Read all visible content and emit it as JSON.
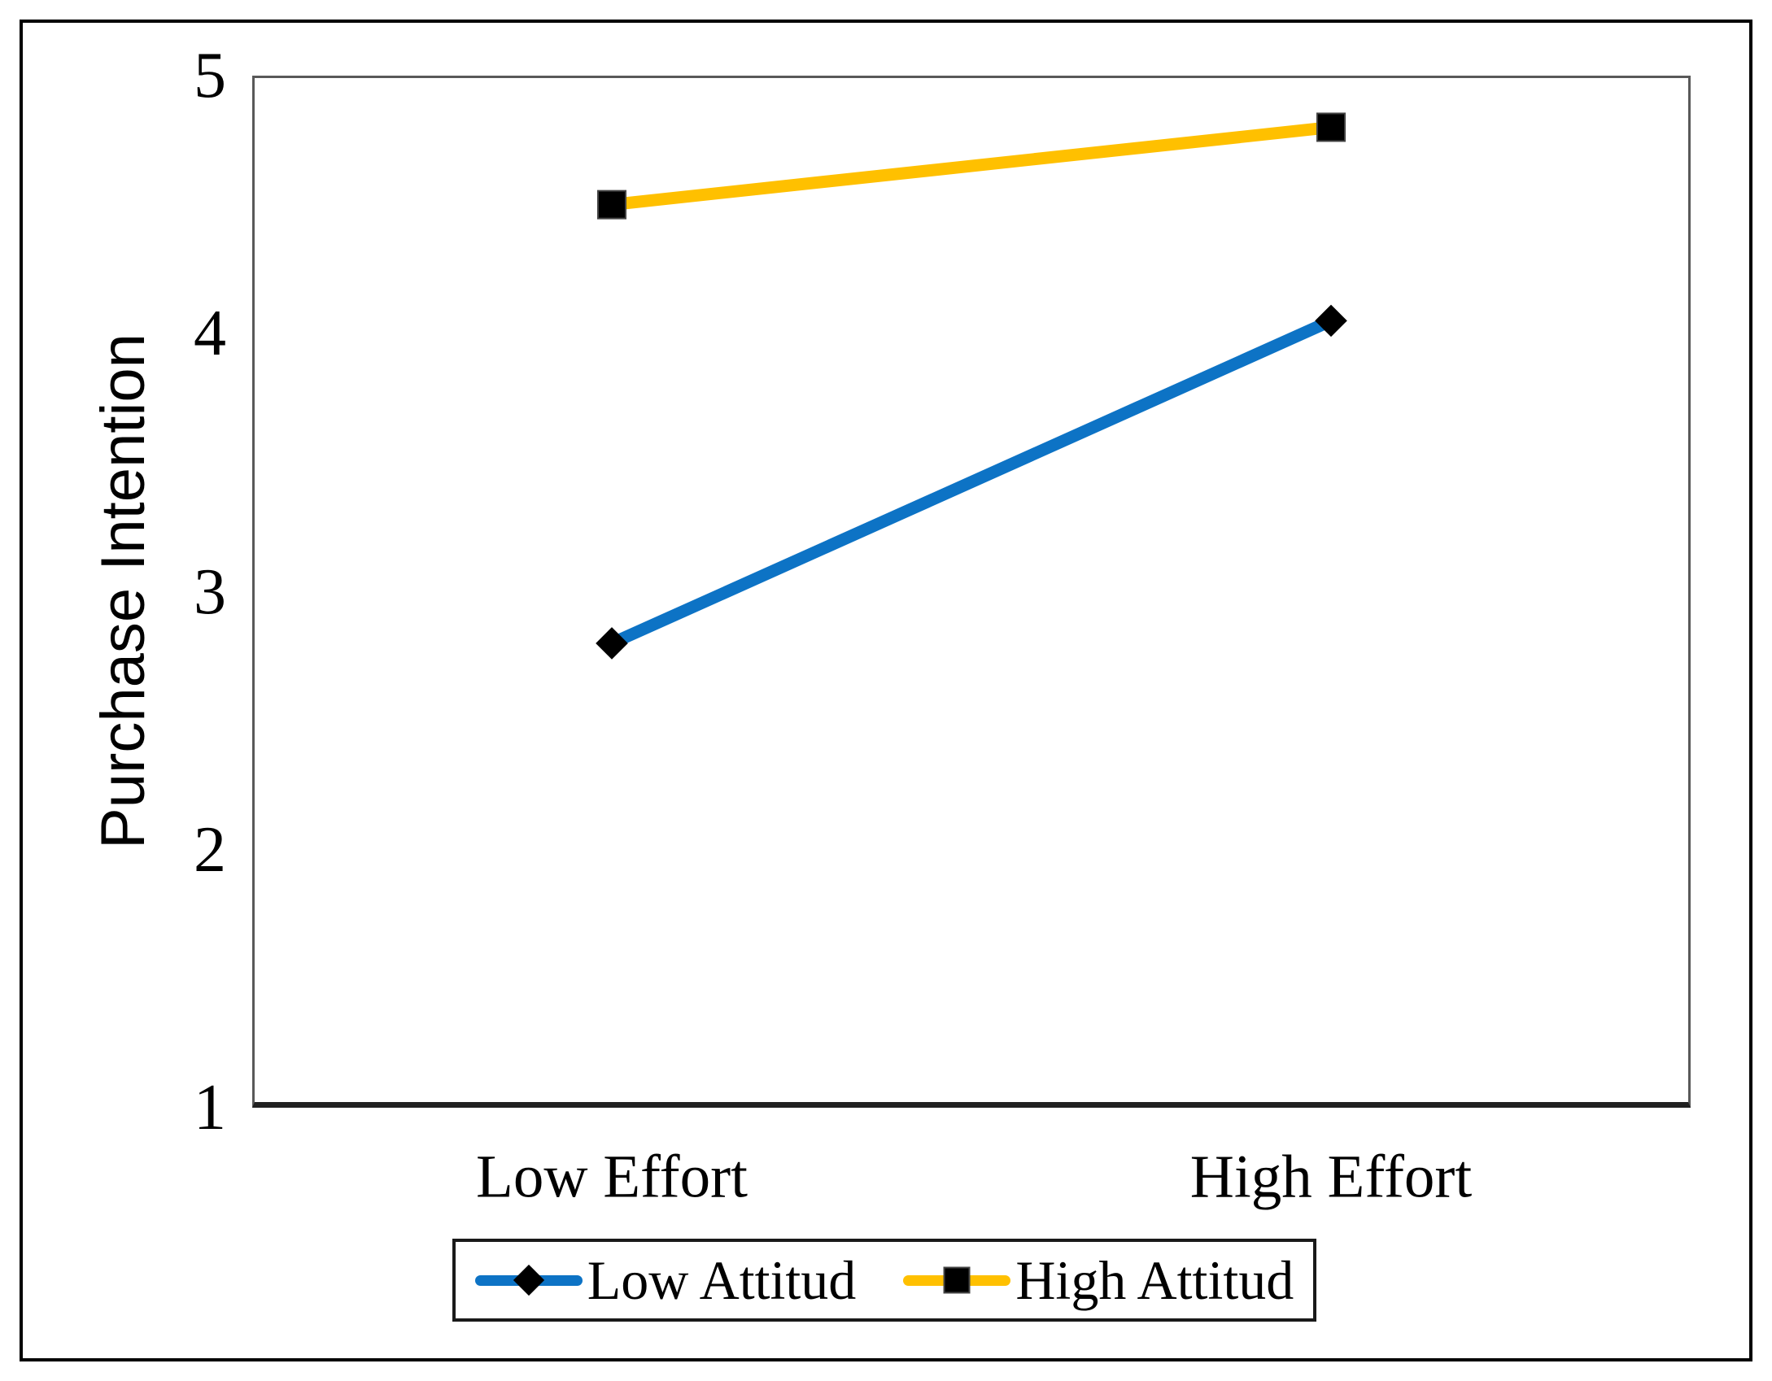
{
  "figure": {
    "background_color": "#ffffff",
    "frame_color": "#000000",
    "plot_border_color": "#595959",
    "axis_line_color": "#212121"
  },
  "chart_data": {
    "type": "line",
    "title": "",
    "xlabel": "",
    "ylabel": "Purchase Intention",
    "categories": [
      "Low Effort",
      "High Effort"
    ],
    "ylim": [
      1,
      5
    ],
    "yticks": [
      1,
      2,
      3,
      4,
      5
    ],
    "ytick_labels": [
      "1",
      "2",
      "3",
      "4",
      "5"
    ],
    "grid": false,
    "legend_position": "bottom",
    "series": [
      {
        "name": "Low Attitud",
        "values": [
          2.8,
          4.05
        ],
        "color": "#0d73c5",
        "marker": "diamond",
        "marker_color": "#000000"
      },
      {
        "name": "High Attitud",
        "values": [
          4.5,
          4.8
        ],
        "color": "#ffc000",
        "marker": "square",
        "marker_color": "#000000"
      }
    ]
  }
}
